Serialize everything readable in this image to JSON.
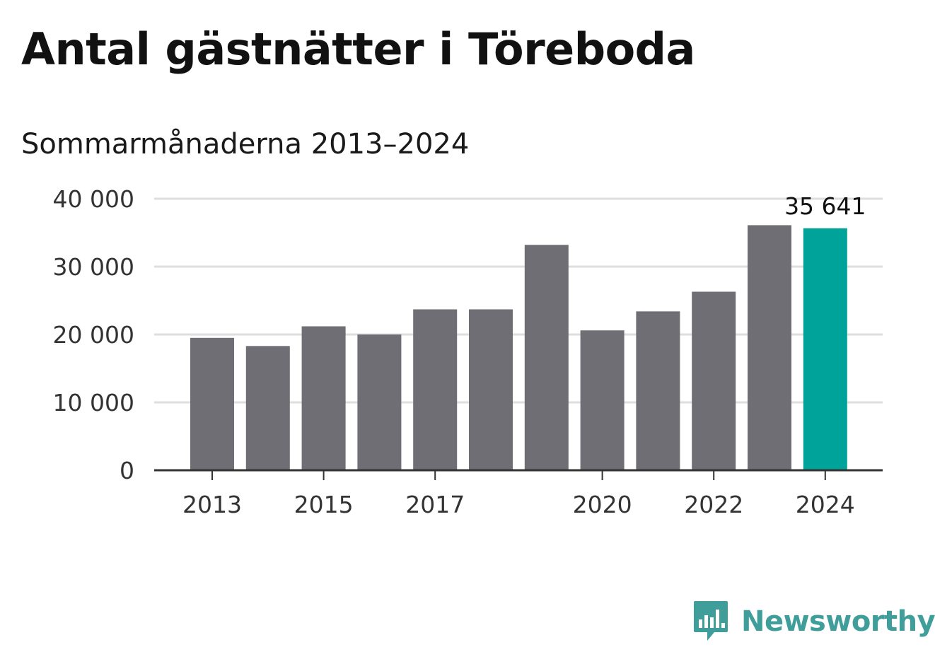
{
  "title": "Antal gästnätter i Töreboda",
  "subtitle": "Sommarmånaderna 2013–2024",
  "brand": {
    "name": "Newsworthy",
    "icon": "newsworthy-logo-icon"
  },
  "colors": {
    "bar": "#6e6e74",
    "highlight": "#00a399",
    "grid": "#dedede",
    "axis": "#333333",
    "brand": "#3f9d9a"
  },
  "chart_data": {
    "type": "bar",
    "title": "Antal gästnätter i Töreboda",
    "subtitle": "Sommarmånaderna 2013–2024",
    "xlabel": "",
    "ylabel": "",
    "categories": [
      "2013",
      "2014",
      "2015",
      "2016",
      "2017",
      "2018",
      "2019",
      "2020",
      "2021",
      "2022",
      "2023",
      "2024"
    ],
    "values": [
      19500,
      18300,
      21200,
      20000,
      23700,
      23700,
      33200,
      20600,
      23400,
      26300,
      36100,
      35641
    ],
    "x_tick_labels": [
      "2013",
      "",
      "2015",
      "",
      "2017",
      "",
      "",
      "2020",
      "",
      "2022",
      "",
      "2024"
    ],
    "ylim": [
      0,
      40000
    ],
    "y_ticks": [
      0,
      10000,
      20000,
      30000,
      40000
    ],
    "y_tick_labels": [
      "0",
      "10 000",
      "20 000",
      "30 000",
      "40 000"
    ],
    "grid": true,
    "legend": "none",
    "highlight_index": 11,
    "annotations": [
      {
        "category": "2024",
        "text": "35 641"
      }
    ]
  }
}
